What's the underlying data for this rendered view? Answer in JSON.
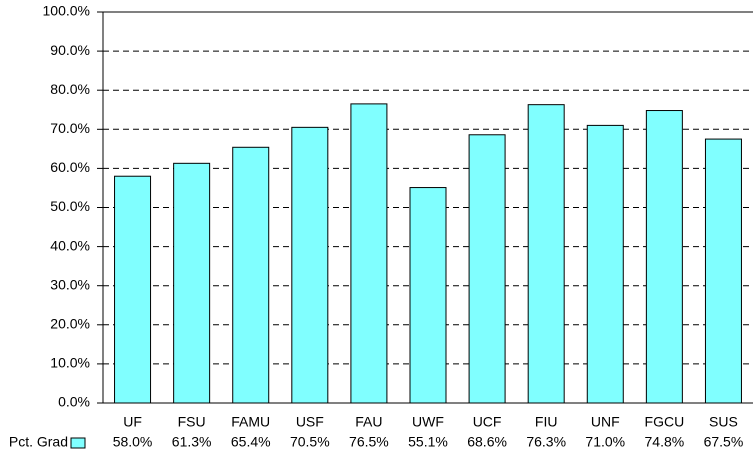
{
  "chart_data": {
    "type": "bar",
    "categories": [
      "UF",
      "FSU",
      "FAMU",
      "USF",
      "FAU",
      "UWF",
      "UCF",
      "FIU",
      "UNF",
      "FGCU",
      "SUS"
    ],
    "series": [
      {
        "name": "Pct. Grad",
        "color": "#80ffff",
        "values": [
          58.0,
          61.3,
          65.4,
          70.5,
          76.5,
          55.1,
          68.6,
          76.3,
          71.0,
          74.8,
          67.5
        ],
        "value_labels": [
          "58.0%",
          "61.3%",
          "65.4%",
          "70.5%",
          "76.5%",
          "55.1%",
          "68.6%",
          "76.3%",
          "71.0%",
          "74.8%",
          "67.5%"
        ]
      }
    ],
    "ylim": [
      0,
      100
    ],
    "yticks": [
      {
        "value": 0,
        "label": "0.0%"
      },
      {
        "value": 10,
        "label": "10.0%"
      },
      {
        "value": 20,
        "label": "20.0%"
      },
      {
        "value": 30,
        "label": "30.0%"
      },
      {
        "value": 40,
        "label": "40.0%"
      },
      {
        "value": 50,
        "label": "50.0%"
      },
      {
        "value": 60,
        "label": "60.0%"
      },
      {
        "value": 70,
        "label": "70.0%"
      },
      {
        "value": 80,
        "label": "80.0%"
      },
      {
        "value": 90,
        "label": "90.0%"
      },
      {
        "value": 100,
        "label": "100.0%"
      }
    ],
    "grid": true
  }
}
